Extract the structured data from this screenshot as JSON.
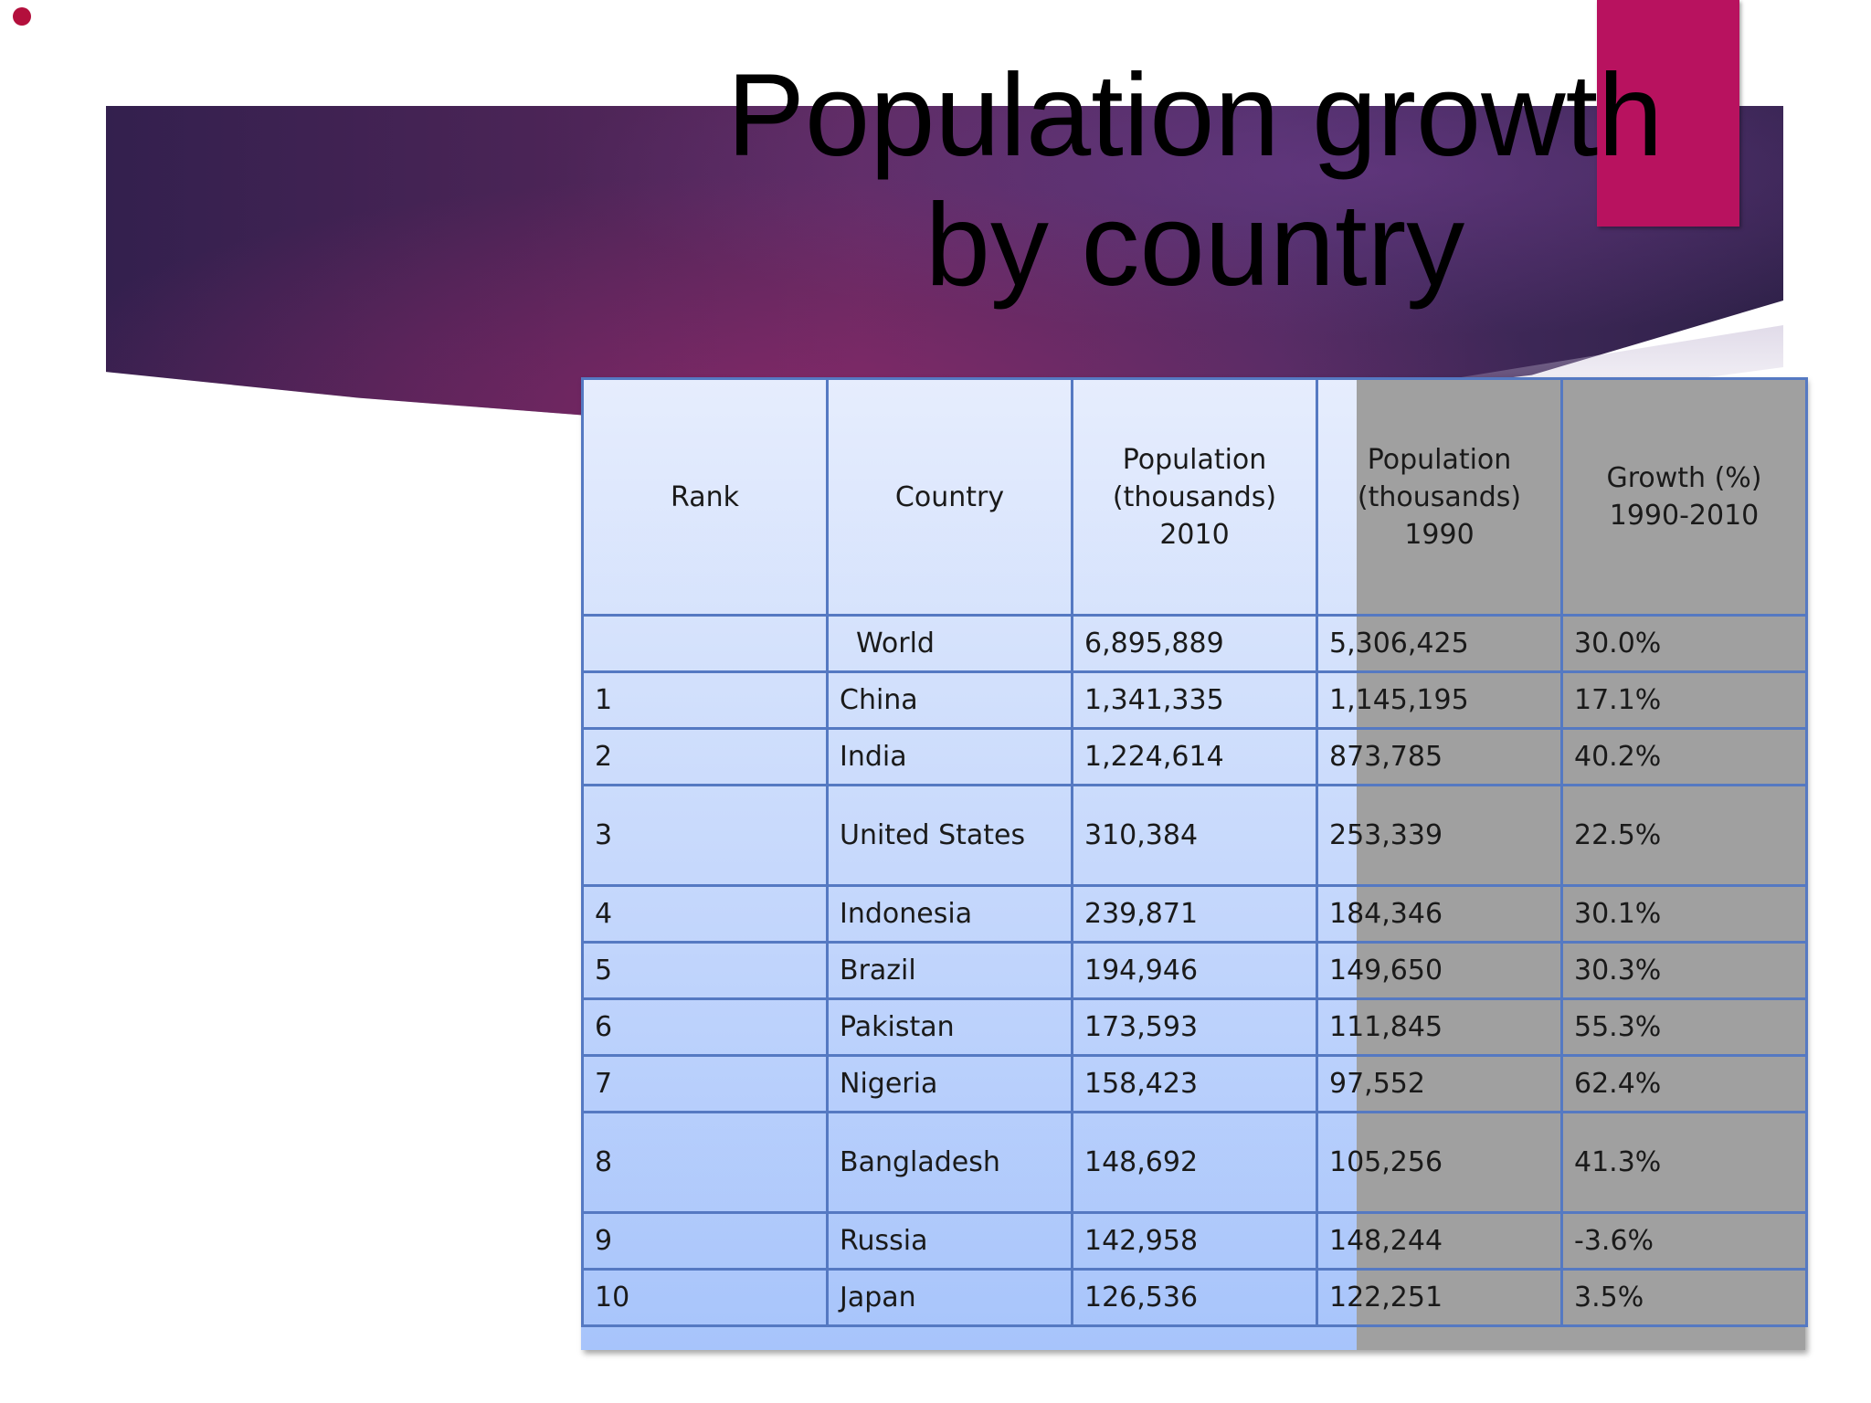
{
  "slide": {
    "title": "Population growth\nby country"
  },
  "table": {
    "headers": [
      "Rank",
      "Country",
      "Population\n(thousands)\n2010",
      "Population\n(thousands)\n1990",
      "Growth (%)\n1990-2010"
    ],
    "rows": [
      {
        "rank": "",
        "country": "World",
        "pop2010": "6,895,889",
        "pop1990": "5,306,425",
        "growth": "30.0%"
      },
      {
        "rank": "1",
        "country": "China",
        "pop2010": "1,341,335",
        "pop1990": "1,145,195",
        "growth": "17.1%"
      },
      {
        "rank": "2",
        "country": "India",
        "pop2010": "1,224,614",
        "pop1990": "873,785",
        "growth": "40.2%"
      },
      {
        "rank": "3",
        "country": "United States",
        "pop2010": "310,384",
        "pop1990": "253,339",
        "growth": "22.5%"
      },
      {
        "rank": "4",
        "country": "Indonesia",
        "pop2010": "239,871",
        "pop1990": "184,346",
        "growth": "30.1%"
      },
      {
        "rank": "5",
        "country": "Brazil",
        "pop2010": "194,946",
        "pop1990": "149,650",
        "growth": "30.3%"
      },
      {
        "rank": "6",
        "country": "Pakistan",
        "pop2010": "173,593",
        "pop1990": "111,845",
        "growth": "55.3%"
      },
      {
        "rank": "7",
        "country": "Nigeria",
        "pop2010": "158,423",
        "pop1990": "97,552",
        "growth": "62.4%"
      },
      {
        "rank": "8",
        "country": "Bangladesh",
        "pop2010": "148,692",
        "pop1990": "105,256",
        "growth": "41.3%"
      },
      {
        "rank": "9",
        "country": "Russia",
        "pop2010": "142,958",
        "pop1990": "148,244",
        "growth": "-3.6%"
      },
      {
        "rank": "10",
        "country": "Japan",
        "pop2010": "126,536",
        "pop1990": "122,251",
        "growth": "3.5%"
      }
    ]
  },
  "colors": {
    "banner": "#4a2456",
    "accent": "#b8125f",
    "bullet": "#b30f3c",
    "table_top": "#e6edfd",
    "table_bottom": "#a7c4fb",
    "table_border": "#5579c2",
    "overlay": "#a0a0a0"
  }
}
